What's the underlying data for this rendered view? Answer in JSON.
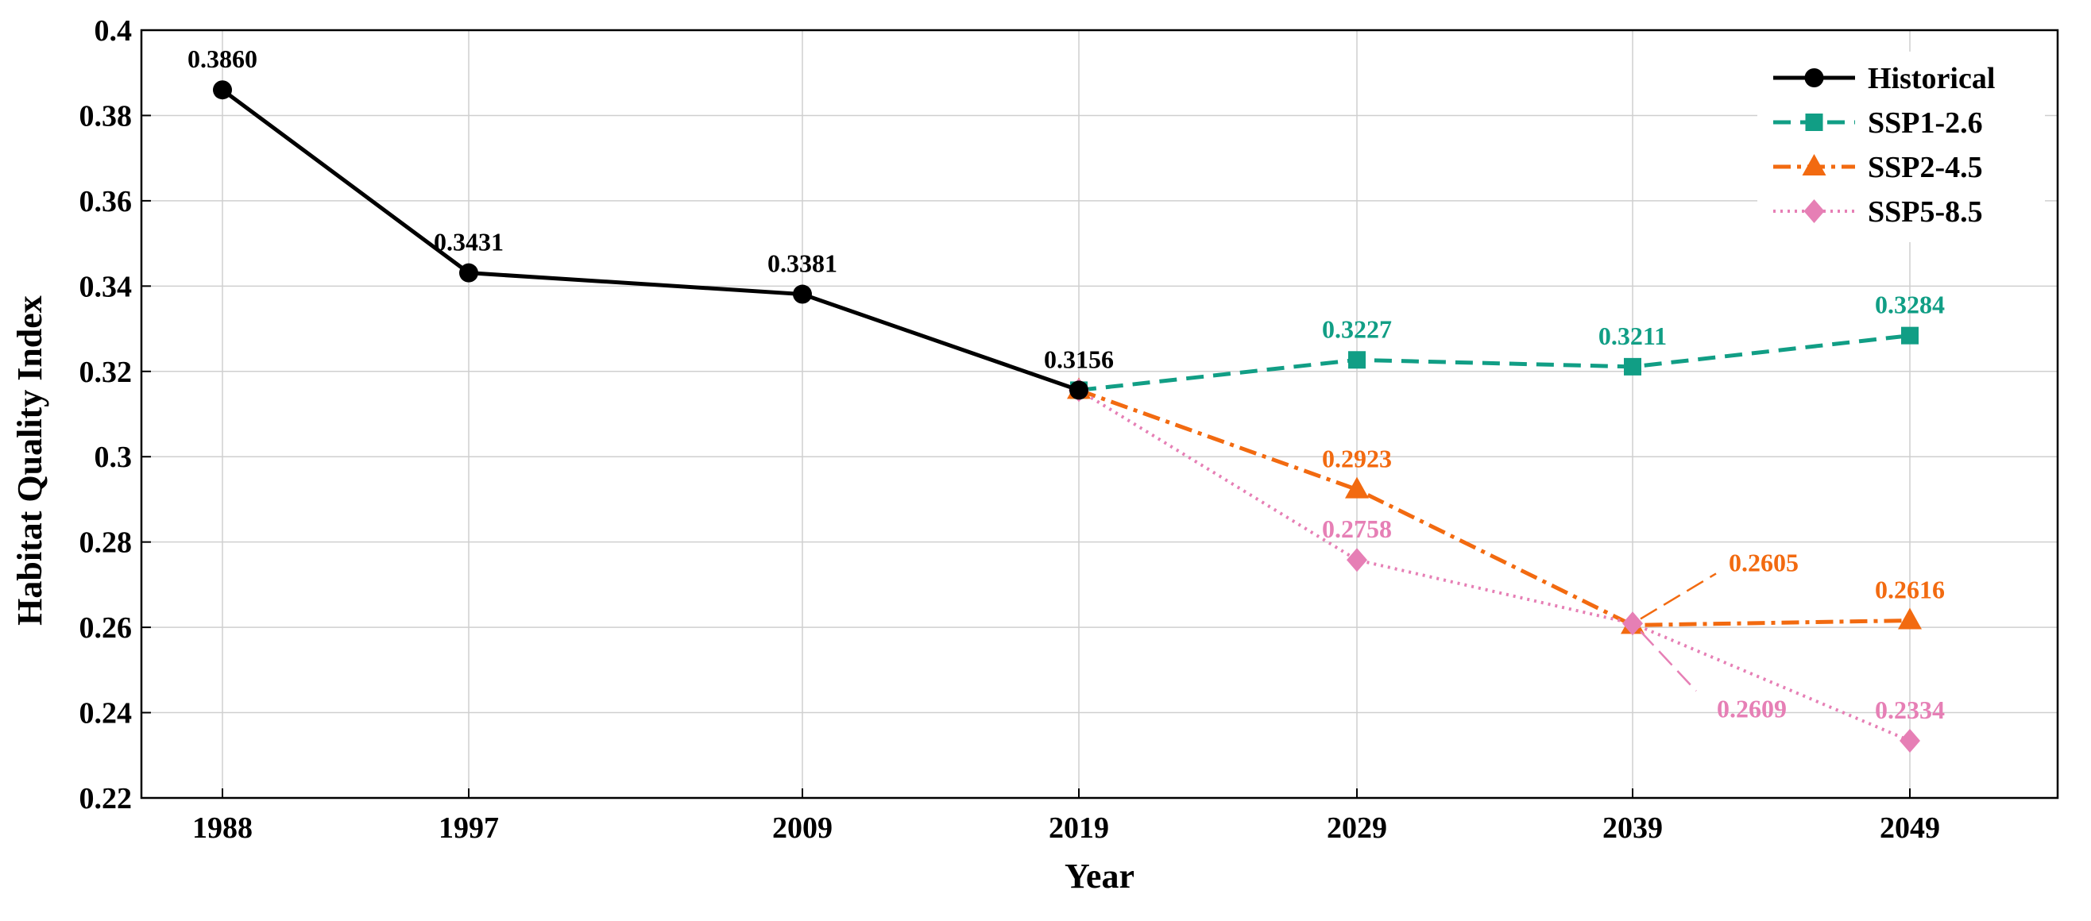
{
  "chart_data": {
    "type": "line",
    "title": "",
    "xlabel": "Year",
    "ylabel": "Habitat Quality Index",
    "ylim": [
      0.22,
      0.4
    ],
    "yticks": [
      0.22,
      0.24,
      0.26,
      0.28,
      0.3,
      0.32,
      0.34,
      0.36,
      0.38,
      0.4
    ],
    "ytick_labels": [
      "0.22",
      "0.24",
      "0.26",
      "0.28",
      "0.3",
      "0.32",
      "0.34",
      "0.36",
      "0.38",
      "0.4"
    ],
    "categories": [
      "1988",
      "1997",
      "2009",
      "2019",
      "2029",
      "2039",
      "2049"
    ],
    "grid": true,
    "legend_position": "top-right",
    "series": [
      {
        "name": "Historical",
        "color": "#000000",
        "marker": "circle",
        "dash": "solid",
        "points": [
          {
            "x": "1988",
            "y": 0.386,
            "label": "0.3860"
          },
          {
            "x": "1997",
            "y": 0.3431,
            "label": "0.3431"
          },
          {
            "x": "2009",
            "y": 0.3381,
            "label": "0.3381"
          },
          {
            "x": "2019",
            "y": 0.3156,
            "label": "0.3156"
          }
        ]
      },
      {
        "name": "SSP1-2.6",
        "color": "#119e85",
        "marker": "square",
        "dash": "dashed",
        "points": [
          {
            "x": "2019",
            "y": 0.3156,
            "label": ""
          },
          {
            "x": "2029",
            "y": 0.3227,
            "label": "0.3227"
          },
          {
            "x": "2039",
            "y": 0.3211,
            "label": "0.3211"
          },
          {
            "x": "2049",
            "y": 0.3284,
            "label": "0.3284"
          }
        ]
      },
      {
        "name": "SSP2-4.5",
        "color": "#f26a10",
        "marker": "triangle",
        "dash": "dashdot",
        "points": [
          {
            "x": "2019",
            "y": 0.3156,
            "label": ""
          },
          {
            "x": "2029",
            "y": 0.2923,
            "label": "0.2923"
          },
          {
            "x": "2039",
            "y": 0.2605,
            "label": "0.2605"
          },
          {
            "x": "2049",
            "y": 0.2616,
            "label": "0.2616"
          }
        ]
      },
      {
        "name": "SSP5-8.5",
        "color": "#e67fb5",
        "marker": "diamond",
        "dash": "dotted",
        "points": [
          {
            "x": "2019",
            "y": 0.3156,
            "label": ""
          },
          {
            "x": "2029",
            "y": 0.2758,
            "label": "0.2758"
          },
          {
            "x": "2039",
            "y": 0.2609,
            "label": "0.2609"
          },
          {
            "x": "2049",
            "y": 0.2334,
            "label": "0.2334"
          }
        ]
      }
    ]
  }
}
